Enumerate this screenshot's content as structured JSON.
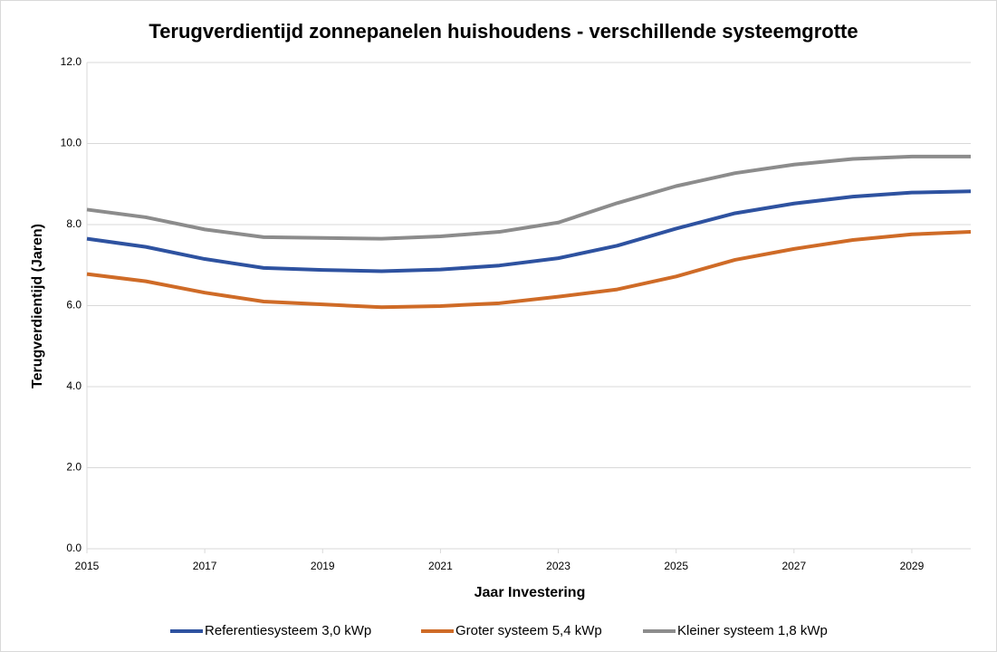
{
  "chart_data": {
    "type": "line",
    "title": "Terugverdientijd zonnepanelen huishoudens - verschillende systeemgrotte",
    "x_label": "Jaar Investering",
    "y_label": "Terugverdientijd (Jaren)",
    "x": [
      2015,
      2016,
      2017,
      2018,
      2019,
      2020,
      2021,
      2022,
      2023,
      2024,
      2025,
      2026,
      2027,
      2028,
      2029,
      2030
    ],
    "series": [
      {
        "name": "Referentiesysteem 3,0 kWp",
        "color": "#2e52a0",
        "values": [
          7.65,
          7.45,
          7.15,
          6.93,
          6.88,
          6.85,
          6.89,
          6.99,
          7.17,
          7.48,
          7.9,
          8.28,
          8.52,
          8.69,
          8.79,
          8.82
        ]
      },
      {
        "name": "Groter systeem 5,4 kWp",
        "color": "#cf6b27",
        "values": [
          6.78,
          6.6,
          6.32,
          6.1,
          6.03,
          5.96,
          5.99,
          6.06,
          6.22,
          6.4,
          6.72,
          7.13,
          7.4,
          7.62,
          7.76,
          7.82
        ]
      },
      {
        "name": "Kleiner systeem 1,8 kWp",
        "color": "#8c8c8c",
        "values": [
          8.37,
          8.18,
          7.88,
          7.69,
          7.67,
          7.65,
          7.71,
          7.82,
          8.05,
          8.53,
          8.95,
          9.27,
          9.48,
          9.62,
          9.68,
          9.68
        ]
      }
    ],
    "xlim": [
      2015,
      2030
    ],
    "xticks": [
      2015,
      2017,
      2019,
      2021,
      2023,
      2025,
      2027,
      2029
    ],
    "ylim": [
      0,
      12
    ],
    "yticks": [
      {
        "value": 0,
        "label": "0.0"
      },
      {
        "value": 2,
        "label": "2.0"
      },
      {
        "value": 4,
        "label": "4.0"
      },
      {
        "value": 6,
        "label": "6.0"
      },
      {
        "value": 8,
        "label": "8.0"
      },
      {
        "value": 10,
        "label": "10.0"
      },
      {
        "value": 12,
        "label": "12.0"
      }
    ],
    "grid": true,
    "legend": "bottom"
  }
}
